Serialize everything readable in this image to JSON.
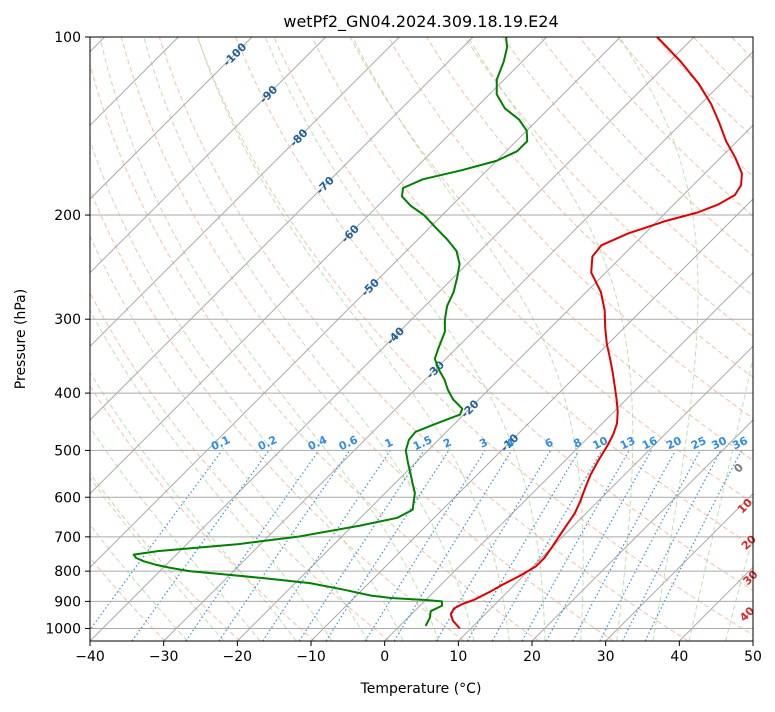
{
  "chart_data": {
    "type": "skew-t",
    "title": "wetPf2_GN04.2024.309.18.19.E24",
    "xlabel": "Temperature (°C)",
    "ylabel": "Pressure (hPa)",
    "xlim": [
      -40,
      50
    ],
    "ylim_pressure": [
      1050,
      100
    ],
    "x_ticks": [
      -40,
      -30,
      -20,
      -10,
      0,
      10,
      20,
      30,
      40,
      50
    ],
    "x_tick_labels": [
      "−40",
      "−30",
      "−20",
      "−10",
      "0",
      "10",
      "20",
      "30",
      "40",
      "50"
    ],
    "y_ticks": [
      100,
      200,
      300,
      400,
      500,
      600,
      700,
      800,
      900,
      1000
    ],
    "y_tick_labels": [
      "100",
      "200",
      "300",
      "400",
      "500",
      "600",
      "700",
      "800",
      "900",
      "1000"
    ],
    "grid": true,
    "colors": {
      "temperature": "#e00000",
      "dewpoint": "#008000",
      "isotherm": "#aaaaaa",
      "dry_adiabat": "#f4a582",
      "moist_adiabat": "#a6d59a",
      "mixing_ratio": "#3a8fd9",
      "isotherm_label": "#1f5f9a",
      "mixing_ratio_label": "#2f8fe0",
      "theta_e_label": "#d62728"
    },
    "series": [
      {
        "key": "temperature",
        "points": [
          [
            1000,
            8.5
          ],
          [
            970,
            6.5
          ],
          [
            945,
            5.3
          ],
          [
            925,
            5.0
          ],
          [
            910,
            5.5
          ],
          [
            895,
            6.5
          ],
          [
            870,
            7.5
          ],
          [
            845,
            8.3
          ],
          [
            815,
            9.5
          ],
          [
            785,
            10.4
          ],
          [
            760,
            10.4
          ],
          [
            730,
            10.0
          ],
          [
            700,
            9.5
          ],
          [
            670,
            9.0
          ],
          [
            640,
            8.5
          ],
          [
            610,
            7.6
          ],
          [
            580,
            6.5
          ],
          [
            550,
            5.4
          ],
          [
            520,
            4.5
          ],
          [
            490,
            3.7
          ],
          [
            470,
            3.0
          ],
          [
            450,
            2.0
          ],
          [
            430,
            0.5
          ],
          [
            410,
            -1.3
          ],
          [
            390,
            -3.3
          ],
          [
            370,
            -5.4
          ],
          [
            350,
            -7.7
          ],
          [
            330,
            -10.2
          ],
          [
            310,
            -12.6
          ],
          [
            290,
            -15.0
          ],
          [
            270,
            -18.0
          ],
          [
            250,
            -22.0
          ],
          [
            235,
            -24.0
          ],
          [
            225,
            -24.3
          ],
          [
            215,
            -22.3
          ],
          [
            205,
            -19.0
          ],
          [
            198,
            -15.7
          ],
          [
            192,
            -14.0
          ],
          [
            185,
            -13.0
          ],
          [
            178,
            -13.5
          ],
          [
            170,
            -15.0
          ],
          [
            160,
            -18.0
          ],
          [
            150,
            -21.5
          ],
          [
            140,
            -24.8
          ],
          [
            130,
            -28.5
          ],
          [
            120,
            -33.0
          ],
          [
            110,
            -38.5
          ],
          [
            100,
            -45.0
          ]
        ]
      },
      {
        "key": "dewpoint",
        "points": [
          [
            990,
            3.5
          ],
          [
            960,
            3.0
          ],
          [
            935,
            2.2
          ],
          [
            915,
            3.0
          ],
          [
            900,
            2.4
          ],
          [
            895,
            0.0
          ],
          [
            888,
            -5.0
          ],
          [
            880,
            -8.0
          ],
          [
            860,
            -12.5
          ],
          [
            838,
            -18.0
          ],
          [
            822,
            -25.0
          ],
          [
            810,
            -31.0
          ],
          [
            800,
            -36.0
          ],
          [
            790,
            -39.0
          ],
          [
            780,
            -41.5
          ],
          [
            770,
            -43.5
          ],
          [
            760,
            -45.0
          ],
          [
            750,
            -45.8
          ],
          [
            740,
            -43.0
          ],
          [
            720,
            -33.0
          ],
          [
            700,
            -26.0
          ],
          [
            670,
            -19.0
          ],
          [
            650,
            -15.0
          ],
          [
            630,
            -14.0
          ],
          [
            610,
            -15.0
          ],
          [
            590,
            -16.0
          ],
          [
            570,
            -17.5
          ],
          [
            550,
            -19.0
          ],
          [
            525,
            -21.0
          ],
          [
            500,
            -23.0
          ],
          [
            480,
            -24.0
          ],
          [
            465,
            -24.2
          ],
          [
            450,
            -22.5
          ],
          [
            435,
            -20.5
          ],
          [
            425,
            -21.0
          ],
          [
            410,
            -23.5
          ],
          [
            395,
            -25.5
          ],
          [
            380,
            -27.3
          ],
          [
            365,
            -29.5
          ],
          [
            350,
            -31.5
          ],
          [
            335,
            -32.5
          ],
          [
            315,
            -33.8
          ],
          [
            300,
            -35.5
          ],
          [
            285,
            -37.0
          ],
          [
            270,
            -38.0
          ],
          [
            255,
            -39.5
          ],
          [
            242,
            -41.0
          ],
          [
            230,
            -43.2
          ],
          [
            220,
            -46.0
          ],
          [
            210,
            -49.2
          ],
          [
            200,
            -52.5
          ],
          [
            193,
            -55.5
          ],
          [
            186,
            -58.0
          ],
          [
            180,
            -59.0
          ],
          [
            174,
            -57.5
          ],
          [
            168,
            -53.5
          ],
          [
            162,
            -50.0
          ],
          [
            156,
            -48.5
          ],
          [
            150,
            -48.5
          ],
          [
            144,
            -50.0
          ],
          [
            138,
            -52.5
          ],
          [
            132,
            -56.0
          ],
          [
            125,
            -59.0
          ],
          [
            118,
            -61.0
          ],
          [
            110,
            -62.5
          ],
          [
            104,
            -64.0
          ],
          [
            100,
            -65.5
          ]
        ]
      }
    ],
    "isotherm_labels": [
      "-100",
      "-90",
      "-80",
      "-70",
      "-60",
      "-50",
      "-40",
      "-30",
      "-20",
      "-10"
    ],
    "mixing_ratio_labels": [
      "0.1",
      "0.2",
      "0.4",
      "0.6",
      "1",
      "1.5",
      "2",
      "3",
      "4",
      "6",
      "8",
      "10",
      "13",
      "16",
      "20",
      "25",
      "30",
      "36"
    ],
    "theta_e_labels": [
      "0",
      "10",
      "20",
      "30",
      "40"
    ]
  }
}
